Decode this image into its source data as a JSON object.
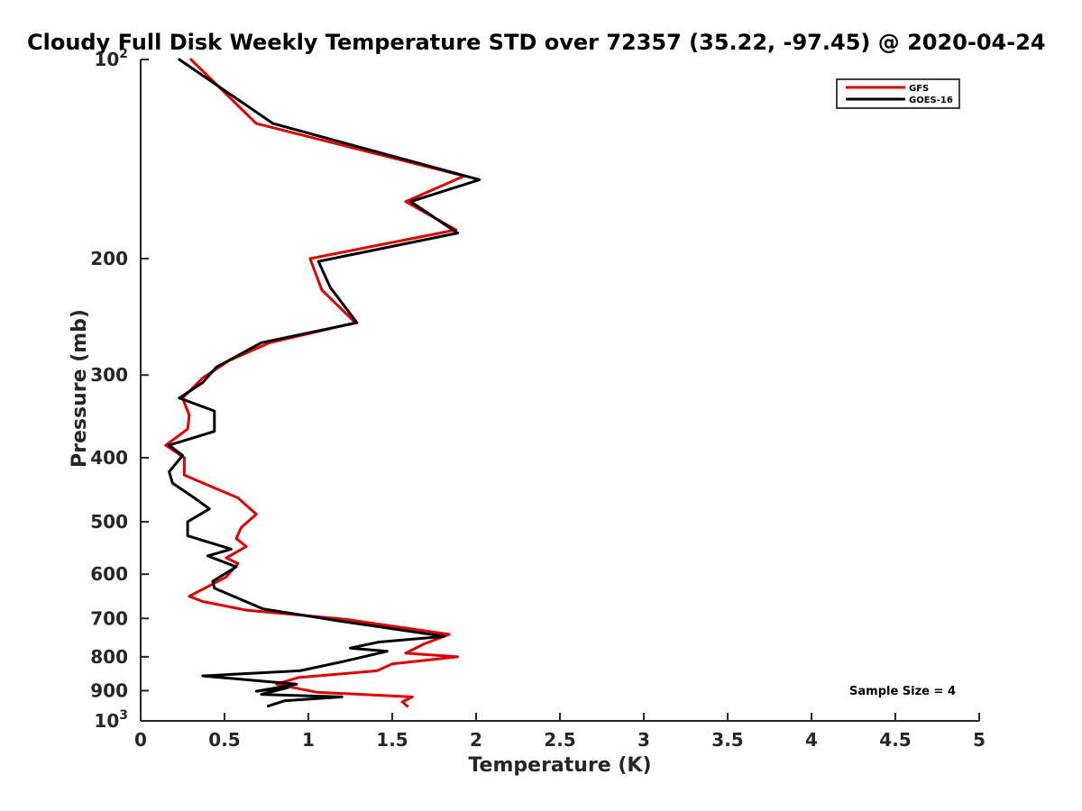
{
  "chart_data": {
    "type": "line",
    "title": "Cloudy Full Disk Weekly Temperature STD over 72357 (35.22, -97.45) @ 2020-04-24",
    "xlabel": "Temperature (K)",
    "ylabel": "Pressure (mb)",
    "xlim": [
      0,
      5
    ],
    "ylim": [
      100,
      1000
    ],
    "y_scale": "log",
    "y_reversed": true,
    "x_ticks": [
      "0",
      "0.5",
      "1",
      "1.5",
      "2",
      "2.5",
      "3",
      "3.5",
      "4",
      "4.5",
      "5"
    ],
    "y_ticks": [
      {
        "value": 100,
        "base": "10",
        "exp": "2"
      },
      {
        "value": 200,
        "label": "200"
      },
      {
        "value": 300,
        "label": "300"
      },
      {
        "value": 400,
        "label": "400"
      },
      {
        "value": 500,
        "label": "500"
      },
      {
        "value": 600,
        "label": "600"
      },
      {
        "value": 700,
        "label": "700"
      },
      {
        "value": 800,
        "label": "800"
      },
      {
        "value": 900,
        "label": "900"
      },
      {
        "value": 1000,
        "base": "10",
        "exp": "3"
      }
    ],
    "legend_position": "top-right",
    "annotation": "Sample Size = 4",
    "series": [
      {
        "name": "GFS",
        "color": "#e00000",
        "points": [
          [
            0.3,
            100
          ],
          [
            0.69,
            125
          ],
          [
            1.93,
            150
          ],
          [
            1.58,
            164
          ],
          [
            1.88,
            181
          ],
          [
            1.01,
            200
          ],
          [
            1.08,
            223
          ],
          [
            1.28,
            250
          ],
          [
            0.77,
            268
          ],
          [
            0.53,
            285
          ],
          [
            0.37,
            303
          ],
          [
            0.25,
            325
          ],
          [
            0.29,
            345
          ],
          [
            0.28,
            362
          ],
          [
            0.15,
            383
          ],
          [
            0.26,
            400
          ],
          [
            0.26,
            425
          ],
          [
            0.58,
            460
          ],
          [
            0.69,
            487
          ],
          [
            0.6,
            510
          ],
          [
            0.57,
            530
          ],
          [
            0.63,
            545
          ],
          [
            0.51,
            567
          ],
          [
            0.58,
            578
          ],
          [
            0.51,
            606
          ],
          [
            0.29,
            648
          ],
          [
            0.37,
            660
          ],
          [
            0.63,
            680
          ],
          [
            1.22,
            702
          ],
          [
            1.84,
            740
          ],
          [
            1.69,
            765
          ],
          [
            1.58,
            790
          ],
          [
            1.89,
            800
          ],
          [
            1.5,
            820
          ],
          [
            1.41,
            840
          ],
          [
            0.94,
            860
          ],
          [
            0.81,
            880
          ],
          [
            1.05,
            905
          ],
          [
            1.62,
            920
          ],
          [
            1.56,
            936
          ],
          [
            1.59,
            950
          ]
        ]
      },
      {
        "name": "GOES-16",
        "color": "#000000",
        "points": [
          [
            0.23,
            100
          ],
          [
            0.79,
            125
          ],
          [
            2.02,
            152
          ],
          [
            1.61,
            164
          ],
          [
            1.89,
            183
          ],
          [
            1.06,
            202
          ],
          [
            1.13,
            221
          ],
          [
            1.29,
            250
          ],
          [
            0.72,
            268
          ],
          [
            0.45,
            292
          ],
          [
            0.37,
            308
          ],
          [
            0.23,
            325
          ],
          [
            0.44,
            340
          ],
          [
            0.44,
            365
          ],
          [
            0.17,
            383
          ],
          [
            0.25,
            397
          ],
          [
            0.17,
            420
          ],
          [
            0.19,
            437
          ],
          [
            0.32,
            460
          ],
          [
            0.41,
            478
          ],
          [
            0.28,
            500
          ],
          [
            0.28,
            525
          ],
          [
            0.54,
            550
          ],
          [
            0.4,
            563
          ],
          [
            0.57,
            585
          ],
          [
            0.43,
            615
          ],
          [
            0.44,
            630
          ],
          [
            0.73,
            677
          ],
          [
            1.18,
            706
          ],
          [
            1.81,
            745
          ],
          [
            1.42,
            760
          ],
          [
            1.25,
            776
          ],
          [
            1.47,
            785
          ],
          [
            1.22,
            812
          ],
          [
            0.95,
            840
          ],
          [
            0.37,
            855
          ],
          [
            0.93,
            880
          ],
          [
            0.69,
            902
          ],
          [
            0.88,
            890
          ],
          [
            0.72,
            912
          ],
          [
            1.2,
            920
          ],
          [
            0.86,
            932
          ],
          [
            0.76,
            950
          ]
        ]
      }
    ]
  }
}
